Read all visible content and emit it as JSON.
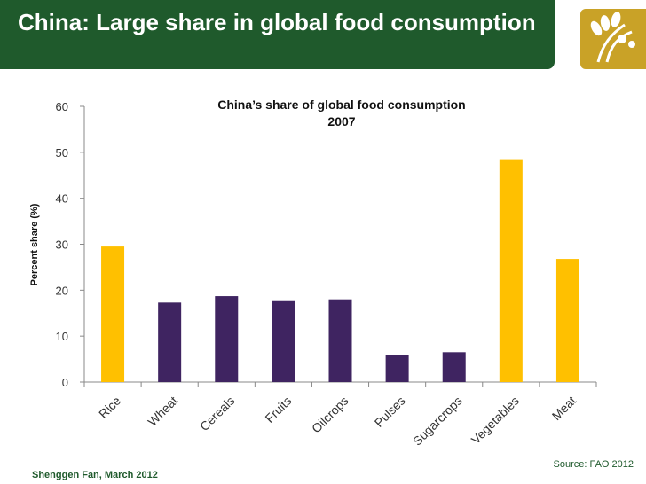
{
  "slide": {
    "title": "China: Large share in global food consumption",
    "footer_author": "Shenggen Fan, March 2012",
    "source": "Source: FAO 2012"
  },
  "colors": {
    "title_bar": "#1f5a2c",
    "logo_bg": "#c9a227",
    "highlight_bar": "#ffc000",
    "regular_bar": "#3f2461"
  },
  "chart_data": {
    "type": "bar",
    "title_line1": "China’s share of global food consumption",
    "title_line2": "2007",
    "xlabel": "",
    "ylabel": "Percent share (%)",
    "ylim": [
      0,
      60
    ],
    "yticks": [
      0,
      10,
      20,
      30,
      40,
      50,
      60
    ],
    "grid": false,
    "categories": [
      "Rice",
      "Wheat",
      "Cereals",
      "Fruits",
      "Oilcrops",
      "Pulses",
      "Sugarcrops",
      "Vegetables",
      "Meat"
    ],
    "values": [
      29.5,
      17.3,
      18.7,
      17.8,
      18.0,
      5.8,
      6.5,
      48.5,
      26.8
    ],
    "highlight": [
      true,
      false,
      false,
      false,
      false,
      false,
      false,
      true,
      true
    ]
  }
}
